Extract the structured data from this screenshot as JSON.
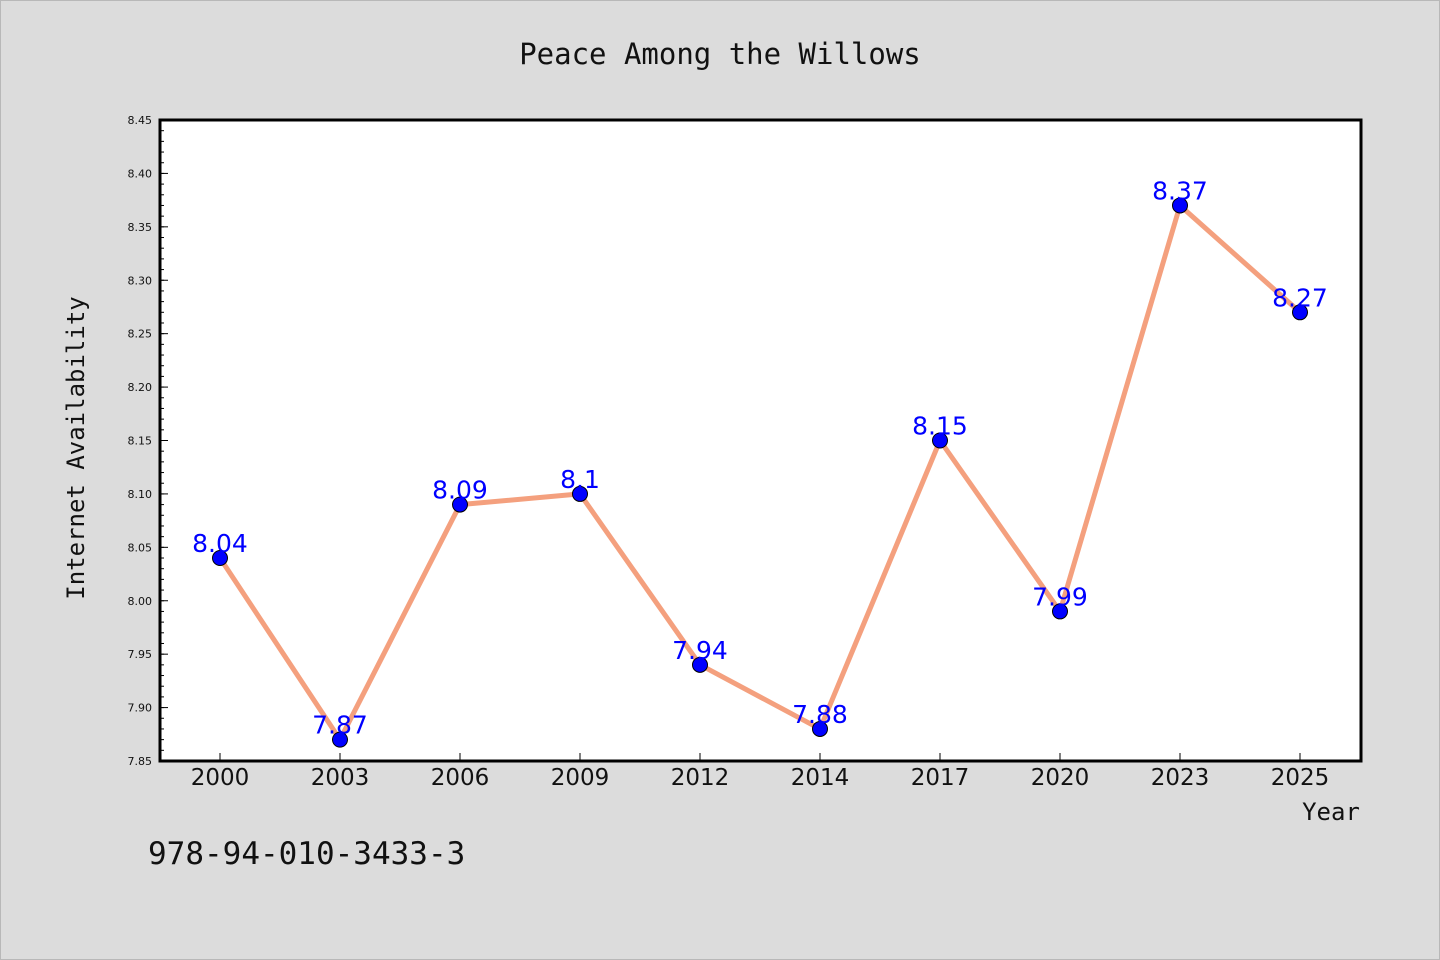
{
  "chart_data": {
    "type": "line",
    "title": "Peace Among the Willows",
    "xlabel": "Year",
    "ylabel": "Internet Availability",
    "categories": [
      "2000",
      "2003",
      "2006",
      "2009",
      "2012",
      "2014",
      "2017",
      "2020",
      "2023",
      "2025"
    ],
    "series": [
      {
        "values": [
          8.04,
          7.87,
          8.09,
          8.1,
          7.94,
          7.88,
          8.15,
          7.99,
          8.37,
          8.27
        ],
        "data_labels": [
          "8.04",
          "7.87",
          "8.09",
          "8.1",
          "7.94",
          "7.88",
          "8.15",
          "7.99",
          "8.37",
          "8.27"
        ]
      }
    ],
    "yticks": [
      "7.85",
      "7.90",
      "7.95",
      "8.00",
      "8.05",
      "8.10",
      "8.15",
      "8.20",
      "8.25",
      "8.30",
      "8.35",
      "8.40",
      "8.45"
    ],
    "ylim": [
      7.85,
      8.45
    ],
    "grid": false,
    "colors": {
      "line": "#f4a07e",
      "marker": "#0000ff",
      "label": "#0000ff",
      "background": "#dcdcdc",
      "plot_background": "#ffffff"
    },
    "footnote": "978-94-010-3433-3"
  }
}
